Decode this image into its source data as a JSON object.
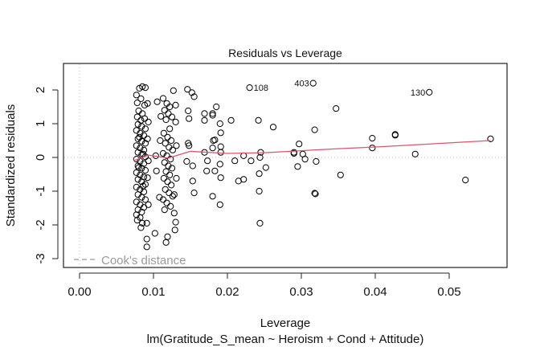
{
  "chart_data": {
    "type": "scatter",
    "title": "Residuals vs Leverage",
    "xlabel": "Leverage",
    "ylabel": "Standardized residuals",
    "subtitle": "lm(Gratitude_S_mean ~ Heroism + Cond + Attitude)",
    "xlim": [
      0.0,
      0.057
    ],
    "ylim": [
      -3.1,
      2.6
    ],
    "x_ticks": [
      0.0,
      0.01,
      0.02,
      0.03,
      0.04,
      0.05
    ],
    "x_tick_labels": [
      "0.00",
      "0.01",
      "0.02",
      "0.03",
      "0.04",
      "0.05"
    ],
    "y_ticks": [
      -3,
      -2,
      -1,
      0,
      1,
      2
    ],
    "y_tick_labels": [
      "-3",
      "-2",
      "-1",
      "0",
      "1",
      "2"
    ],
    "grid": false,
    "reference_lines": {
      "horizontal_y": 0,
      "vertical_x": 0,
      "style": "dotted-gray"
    },
    "legend": {
      "entries": [
        {
          "label": "Cook's distance",
          "style": "dashed-gray"
        }
      ],
      "placement": "bottom-left"
    },
    "colors": {
      "points": "#000000",
      "smooth": "#df536b",
      "reference": "#bebebe",
      "legend_text": "#9a9a9a"
    },
    "labeled_points": [
      {
        "label": "108",
        "x": 0.023,
        "y": 2.07,
        "label_side": "right"
      },
      {
        "label": "403",
        "x": 0.0316,
        "y": 2.2,
        "label_side": "left"
      },
      {
        "label": "130",
        "x": 0.0473,
        "y": 1.93,
        "label_side": "left"
      }
    ],
    "smooth_line": {
      "x": [
        0.0073,
        0.0093,
        0.012,
        0.015,
        0.02,
        0.025,
        0.03,
        0.035,
        0.04,
        0.045,
        0.05,
        0.0556
      ],
      "y": [
        -0.1,
        0.07,
        -0.02,
        0.18,
        0.12,
        0.14,
        0.2,
        0.26,
        0.31,
        0.37,
        0.43,
        0.5
      ]
    },
    "points": [
      {
        "x": 0.0077,
        "y": 1.85
      },
      {
        "x": 0.0081,
        "y": 2.05
      },
      {
        "x": 0.0085,
        "y": 2.1
      },
      {
        "x": 0.0089,
        "y": 2.07
      },
      {
        "x": 0.0078,
        "y": 1.62
      },
      {
        "x": 0.0083,
        "y": 1.74
      },
      {
        "x": 0.0088,
        "y": 1.55
      },
      {
        "x": 0.008,
        "y": 1.38
      },
      {
        "x": 0.0085,
        "y": 1.3
      },
      {
        "x": 0.0078,
        "y": 1.2
      },
      {
        "x": 0.0083,
        "y": 1.1
      },
      {
        "x": 0.0088,
        "y": 1.15
      },
      {
        "x": 0.0079,
        "y": 0.98
      },
      {
        "x": 0.0084,
        "y": 0.92
      },
      {
        "x": 0.0089,
        "y": 0.85
      },
      {
        "x": 0.0077,
        "y": 0.8
      },
      {
        "x": 0.0082,
        "y": 0.72
      },
      {
        "x": 0.0087,
        "y": 0.65
      },
      {
        "x": 0.0079,
        "y": 0.55
      },
      {
        "x": 0.0084,
        "y": 0.48
      },
      {
        "x": 0.0089,
        "y": 0.42
      },
      {
        "x": 0.0077,
        "y": 0.35
      },
      {
        "x": 0.0082,
        "y": 0.28
      },
      {
        "x": 0.0087,
        "y": 0.22
      },
      {
        "x": 0.0079,
        "y": 0.15
      },
      {
        "x": 0.0084,
        "y": 0.08
      },
      {
        "x": 0.0089,
        "y": 0.02
      },
      {
        "x": 0.0077,
        "y": -0.05
      },
      {
        "x": 0.0082,
        "y": -0.12
      },
      {
        "x": 0.0087,
        "y": -0.18
      },
      {
        "x": 0.0079,
        "y": -0.25
      },
      {
        "x": 0.0084,
        "y": -0.32
      },
      {
        "x": 0.0089,
        "y": -0.38
      },
      {
        "x": 0.0077,
        "y": -0.45
      },
      {
        "x": 0.0082,
        "y": -0.52
      },
      {
        "x": 0.0087,
        "y": -0.58
      },
      {
        "x": 0.0079,
        "y": -0.65
      },
      {
        "x": 0.0084,
        "y": -0.72
      },
      {
        "x": 0.0089,
        "y": -0.8
      },
      {
        "x": 0.0077,
        "y": -0.88
      },
      {
        "x": 0.0082,
        "y": -0.95
      },
      {
        "x": 0.0087,
        "y": -1.02
      },
      {
        "x": 0.0079,
        "y": -1.1
      },
      {
        "x": 0.0084,
        "y": -1.18
      },
      {
        "x": 0.0089,
        "y": -1.25
      },
      {
        "x": 0.0077,
        "y": -1.32
      },
      {
        "x": 0.0082,
        "y": -1.4
      },
      {
        "x": 0.0087,
        "y": -1.48
      },
      {
        "x": 0.0079,
        "y": -1.55
      },
      {
        "x": 0.0084,
        "y": -1.62
      },
      {
        "x": 0.0077,
        "y": -1.7
      },
      {
        "x": 0.0082,
        "y": -1.78
      },
      {
        "x": 0.0078,
        "y": -1.86
      },
      {
        "x": 0.0085,
        "y": -1.95
      },
      {
        "x": 0.0083,
        "y": -2.08
      },
      {
        "x": 0.0091,
        "y": -1.95
      },
      {
        "x": 0.0091,
        "y": -2.42
      },
      {
        "x": 0.0091,
        "y": -2.65
      },
      {
        "x": 0.0092,
        "y": 1.6
      },
      {
        "x": 0.0093,
        "y": 1.05
      },
      {
        "x": 0.0092,
        "y": 0.55
      },
      {
        "x": 0.0093,
        "y": -0.1
      },
      {
        "x": 0.0092,
        "y": -0.6
      },
      {
        "x": 0.0093,
        "y": -1.4
      },
      {
        "x": 0.0081,
        "y": 0.6
      },
      {
        "x": 0.008,
        "y": -0.3
      },
      {
        "x": 0.0086,
        "y": 0.1
      },
      {
        "x": 0.0086,
        "y": -0.85
      },
      {
        "x": 0.0103,
        "y": 0.05
      },
      {
        "x": 0.0104,
        "y": -0.4
      },
      {
        "x": 0.0105,
        "y": 1.65
      },
      {
        "x": 0.0102,
        "y": -2.25
      },
      {
        "x": 0.0108,
        "y": -1.18
      },
      {
        "x": 0.011,
        "y": 1.22
      },
      {
        "x": 0.0109,
        "y": 0.5
      },
      {
        "x": 0.0113,
        "y": 1.75
      },
      {
        "x": 0.0118,
        "y": 1.6
      },
      {
        "x": 0.0122,
        "y": 1.5
      },
      {
        "x": 0.0115,
        "y": 1.4
      },
      {
        "x": 0.012,
        "y": 1.3
      },
      {
        "x": 0.0125,
        "y": 1.2
      },
      {
        "x": 0.0117,
        "y": 1.12
      },
      {
        "x": 0.0122,
        "y": 0.85
      },
      {
        "x": 0.0114,
        "y": 0.72
      },
      {
        "x": 0.0119,
        "y": 0.6
      },
      {
        "x": 0.0124,
        "y": 0.5
      },
      {
        "x": 0.0116,
        "y": 0.42
      },
      {
        "x": 0.0121,
        "y": 0.3
      },
      {
        "x": 0.0126,
        "y": 0.22
      },
      {
        "x": 0.0113,
        "y": 0.12
      },
      {
        "x": 0.0118,
        "y": 0.05
      },
      {
        "x": 0.0123,
        "y": -0.05
      },
      {
        "x": 0.0115,
        "y": -0.15
      },
      {
        "x": 0.012,
        "y": -0.25
      },
      {
        "x": 0.0125,
        "y": -0.32
      },
      {
        "x": 0.0117,
        "y": -0.42
      },
      {
        "x": 0.0122,
        "y": -0.52
      },
      {
        "x": 0.0114,
        "y": -0.62
      },
      {
        "x": 0.0119,
        "y": -0.72
      },
      {
        "x": 0.0124,
        "y": -0.82
      },
      {
        "x": 0.0116,
        "y": -0.95
      },
      {
        "x": 0.0121,
        "y": -1.05
      },
      {
        "x": 0.0126,
        "y": -1.15
      },
      {
        "x": 0.0113,
        "y": -1.25
      },
      {
        "x": 0.0118,
        "y": -1.35
      },
      {
        "x": 0.0123,
        "y": -1.45
      },
      {
        "x": 0.0115,
        "y": -1.55
      },
      {
        "x": 0.0128,
        "y": -1.65
      },
      {
        "x": 0.013,
        "y": -1.92
      },
      {
        "x": 0.0129,
        "y": -2.15
      },
      {
        "x": 0.0119,
        "y": -2.35
      },
      {
        "x": 0.0117,
        "y": -2.52
      },
      {
        "x": 0.0127,
        "y": 1.98
      },
      {
        "x": 0.013,
        "y": 1.55
      },
      {
        "x": 0.013,
        "y": 1.05
      },
      {
        "x": 0.0131,
        "y": 0.35
      },
      {
        "x": 0.0131,
        "y": -0.62
      },
      {
        "x": 0.0128,
        "y": -1.1
      },
      {
        "x": 0.0146,
        "y": 2.02
      },
      {
        "x": 0.0152,
        "y": 1.92
      },
      {
        "x": 0.0155,
        "y": 1.8
      },
      {
        "x": 0.0147,
        "y": 1.38
      },
      {
        "x": 0.0148,
        "y": 1.15
      },
      {
        "x": 0.0147,
        "y": 0.42
      },
      {
        "x": 0.0148,
        "y": 0.35
      },
      {
        "x": 0.0145,
        "y": -0.12
      },
      {
        "x": 0.0153,
        "y": -0.25
      },
      {
        "x": 0.0155,
        "y": -1.05
      },
      {
        "x": 0.0153,
        "y": -0.7
      },
      {
        "x": 0.0169,
        "y": 1.3
      },
      {
        "x": 0.0169,
        "y": 1.1
      },
      {
        "x": 0.0169,
        "y": 0.15
      },
      {
        "x": 0.018,
        "y": 1.3
      },
      {
        "x": 0.018,
        "y": 1.25
      },
      {
        "x": 0.0183,
        "y": 0.52
      },
      {
        "x": 0.0181,
        "y": 0.5
      },
      {
        "x": 0.018,
        "y": 0.28
      },
      {
        "x": 0.0185,
        "y": 1.5
      },
      {
        "x": 0.019,
        "y": 1.0
      },
      {
        "x": 0.0191,
        "y": 0.73
      },
      {
        "x": 0.0191,
        "y": 0.32
      },
      {
        "x": 0.0191,
        "y": 0.15
      },
      {
        "x": 0.019,
        "y": -0.2
      },
      {
        "x": 0.0173,
        "y": -0.1
      },
      {
        "x": 0.0172,
        "y": -0.4
      },
      {
        "x": 0.0183,
        "y": -0.4
      },
      {
        "x": 0.018,
        "y": -1.15
      },
      {
        "x": 0.019,
        "y": -1.4
      },
      {
        "x": 0.0191,
        "y": -0.6
      },
      {
        "x": 0.0205,
        "y": 1.1
      },
      {
        "x": 0.021,
        "y": -0.1
      },
      {
        "x": 0.0215,
        "y": -0.7
      },
      {
        "x": 0.0222,
        "y": -0.65
      },
      {
        "x": 0.0232,
        "y": -0.1
      },
      {
        "x": 0.0222,
        "y": 0.05
      },
      {
        "x": 0.0245,
        "y": 0.15
      },
      {
        "x": 0.0244,
        "y": 0.0
      },
      {
        "x": 0.0243,
        "y": -0.48
      },
      {
        "x": 0.0243,
        "y": -1.0
      },
      {
        "x": 0.0244,
        "y": -1.95
      },
      {
        "x": 0.0242,
        "y": 1.1
      },
      {
        "x": 0.0262,
        "y": 0.9
      },
      {
        "x": 0.0252,
        "y": -0.3
      },
      {
        "x": 0.029,
        "y": 0.15
      },
      {
        "x": 0.029,
        "y": 0.12
      },
      {
        "x": 0.0297,
        "y": 0.4
      },
      {
        "x": 0.0302,
        "y": 0.1
      },
      {
        "x": 0.0305,
        "y": -0.05
      },
      {
        "x": 0.0295,
        "y": -0.27
      },
      {
        "x": 0.0318,
        "y": 0.82
      },
      {
        "x": 0.0319,
        "y": -1.08
      },
      {
        "x": 0.032,
        "y": -0.12
      },
      {
        "x": 0.0318,
        "y": -1.06
      },
      {
        "x": 0.0347,
        "y": 1.45
      },
      {
        "x": 0.0353,
        "y": -0.52
      },
      {
        "x": 0.0396,
        "y": 0.57
      },
      {
        "x": 0.0396,
        "y": 0.28
      },
      {
        "x": 0.0427,
        "y": 0.68
      },
      {
        "x": 0.0427,
        "y": 0.66
      },
      {
        "x": 0.0454,
        "y": 0.1
      },
      {
        "x": 0.0522,
        "y": -0.67
      },
      {
        "x": 0.0556,
        "y": 0.55
      }
    ]
  }
}
